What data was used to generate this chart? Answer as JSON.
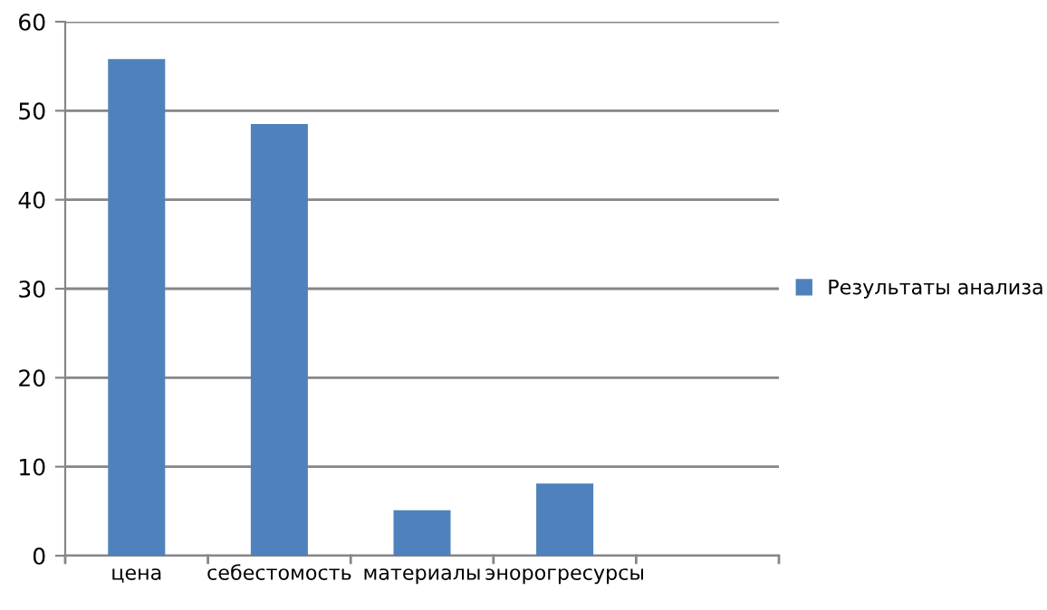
{
  "chart_data": {
    "type": "bar",
    "categories": [
      "цена",
      "себестомость",
      "материалы",
      "энорогресурсы",
      null
    ],
    "series": [
      {
        "name": "Результаты анализа",
        "color": "#4f81bd",
        "values": [
          55.8,
          48.5,
          5.1,
          8.1,
          null
        ]
      }
    ],
    "ylim": [
      0,
      60
    ],
    "yticks": [
      0,
      10,
      20,
      30,
      40,
      50,
      60
    ],
    "grid": "y",
    "legend": "right"
  }
}
